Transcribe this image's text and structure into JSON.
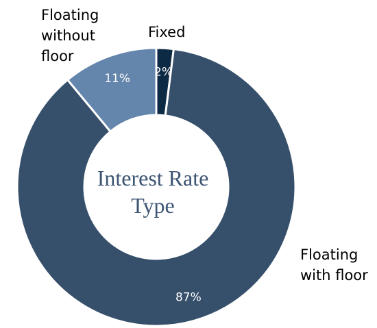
{
  "chart_data": {
    "type": "pie",
    "title": "Interest Rate Type",
    "categories": [
      "Fixed",
      "Floating with floor",
      "Floating without floor"
    ],
    "values": [
      2,
      87,
      11
    ],
    "value_labels": [
      "2%",
      "87%",
      "11%"
    ],
    "colors": [
      "#0d2a45",
      "#364f6b",
      "#6485ac"
    ]
  }
}
